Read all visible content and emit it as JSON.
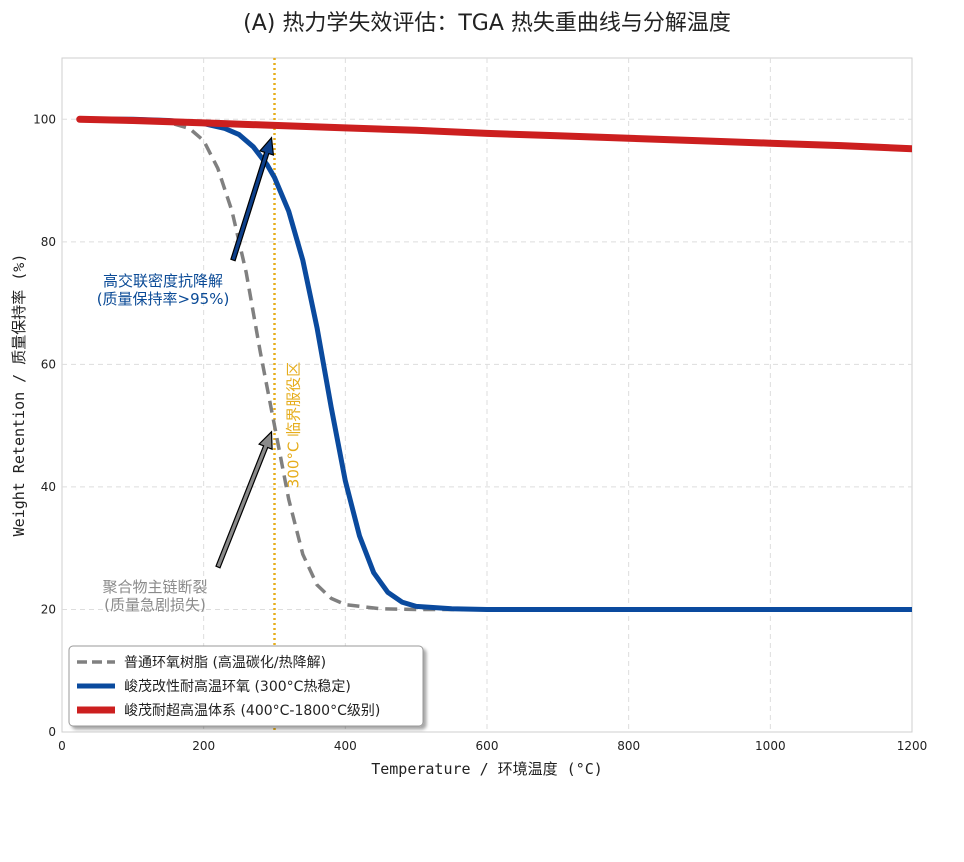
{
  "chart_data": {
    "type": "line",
    "title": "(A) 热力学失效评估：TGA 热失重曲线与分解温度",
    "xlabel": "Temperature / 环境温度 (°C)",
    "ylabel": "Weight Retention / 质量保持率 (%)",
    "xlim": [
      0,
      1200
    ],
    "ylim": [
      0,
      110
    ],
    "xticks": [
      0,
      200,
      400,
      600,
      800,
      1000,
      1200
    ],
    "yticks": [
      0,
      20,
      40,
      60,
      80,
      100
    ],
    "grid": true,
    "legend_position": "lower-left",
    "series": [
      {
        "name": "普通环氧树脂 (高温碳化/热降解)",
        "color": "#808080",
        "style": "dashed",
        "x": [
          25,
          100,
          150,
          180,
          200,
          220,
          240,
          260,
          280,
          300,
          320,
          340,
          360,
          380,
          400,
          450,
          500,
          550,
          600,
          610
        ],
        "y": [
          100,
          99.8,
          99.5,
          98.5,
          96.5,
          92,
          85,
          75,
          62,
          50,
          38,
          29,
          24,
          21.8,
          20.8,
          20.1,
          20,
          20,
          20,
          20
        ]
      },
      {
        "name": "峻茂改性耐高温环氧 (300°C热稳定)",
        "color": "#0a4a9e",
        "style": "solid",
        "x": [
          25,
          100,
          150,
          200,
          230,
          250,
          270,
          290,
          300,
          320,
          340,
          360,
          380,
          400,
          420,
          440,
          460,
          480,
          500,
          550,
          600,
          700,
          800,
          900,
          1000,
          1100,
          1200
        ],
        "y": [
          100,
          100,
          99.8,
          99.3,
          98.5,
          97.5,
          95.5,
          92.5,
          90.5,
          85,
          77,
          66,
          53,
          41,
          32,
          26,
          22.8,
          21.2,
          20.5,
          20.1,
          20,
          20,
          20,
          20,
          20,
          20,
          20
        ]
      },
      {
        "name": "峻茂耐超高温体系 (400°C-1800°C级别)",
        "color": "#cc1f1f",
        "style": "solid",
        "x": [
          25,
          100,
          200,
          300,
          400,
          500,
          600,
          700,
          800,
          900,
          1000,
          1100,
          1200
        ],
        "y": [
          100,
          99.8,
          99.4,
          99,
          98.6,
          98.2,
          97.7,
          97.3,
          96.9,
          96.5,
          96.1,
          95.7,
          95.2
        ]
      }
    ],
    "reference_line": {
      "x": 300,
      "label": "300°C 临界服役区",
      "color": "#e6ad1c"
    },
    "annotations": [
      {
        "lines": [
          "高交联密度抗降解",
          "(质量保持率>95%)"
        ],
        "color": "#0a4a96",
        "arrow_target": {
          "x": 300,
          "y": 97
        }
      },
      {
        "lines": [
          "聚合物主链断裂",
          "(质量急剧损失)"
        ],
        "color": "#8a8a8a",
        "arrow_target": {
          "x": 300,
          "y": 49
        }
      }
    ]
  }
}
